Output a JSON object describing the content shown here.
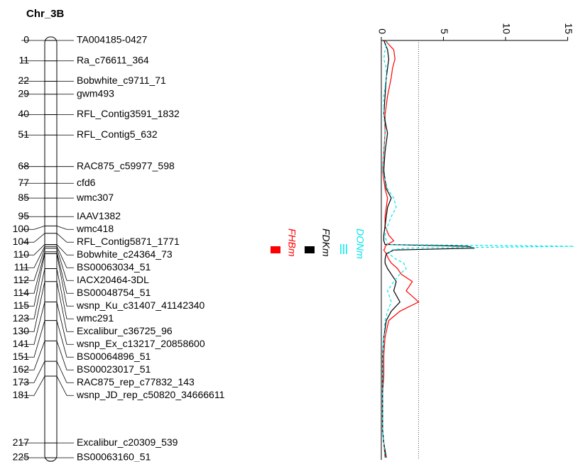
{
  "chart_data": {
    "type": "linkage_map",
    "title": "Chr_3B",
    "markers": {
      "positions": [
        0,
        11,
        22,
        29,
        40,
        51,
        68,
        77,
        85,
        95,
        100,
        104,
        110,
        111,
        112,
        114,
        115,
        123,
        130,
        141,
        151,
        162,
        173,
        181,
        217,
        225
      ],
      "names": [
        "TA004185-0427",
        "Ra_c76611_364",
        "Bobwhite_c9711_71",
        "gwm493",
        "RFL_Contig3591_1832",
        "RFL_Contig5_632",
        "RAC875_c59977_598",
        "cfd6",
        "wmc307",
        "IAAV1382",
        "wmc418",
        "RFL_Contig5871_1771",
        "Bobwhite_c24364_73",
        "BS00063034_51",
        "IACX20464-3DL",
        "BS00048754_51",
        "wsnp_Ku_c31407_41142340",
        "wmc291",
        "Excalibur_c36725_96",
        "wsnp_Ex_c13217_20858600",
        "BS00064896_51",
        "BS00023017_51",
        "RAC875_rep_c77832_143",
        "wsnp_JD_rep_c50820_34666611",
        "Excalibur_c20309_539",
        "BS00063160_51"
      ]
    },
    "positions": [
      0,
      5,
      10,
      15,
      20,
      30,
      40,
      50,
      60,
      70,
      80,
      85,
      90,
      95,
      100,
      105,
      108,
      110,
      111,
      112,
      113,
      115,
      118,
      120,
      123,
      126,
      130,
      135,
      141,
      146,
      151,
      160,
      170,
      181,
      190,
      200,
      210,
      217,
      225
    ],
    "ylim": [
      0,
      225
    ],
    "series": [
      {
        "name": "FHBm",
        "color": "#ff0000",
        "dash": false,
        "values": [
          0.3,
          1.0,
          1.1,
          0.9,
          0.8,
          0.5,
          0.3,
          0.3,
          0.2,
          0.1,
          0.3,
          0.5,
          0.4,
          0.3,
          0.3,
          0.6,
          1.0,
          0.5,
          0.3,
          0.3,
          0.2,
          0.4,
          0.6,
          0.8,
          1.3,
          1.6,
          2.5,
          2.0,
          3.0,
          1.5,
          0.6,
          0.3,
          0.2,
          0.2,
          0.1,
          0.1,
          0.1,
          0.2,
          0.3
        ]
      },
      {
        "name": "FDKm",
        "color": "#000000",
        "dash": false,
        "values": [
          0.2,
          0.5,
          0.6,
          0.5,
          0.4,
          0.3,
          0.2,
          0.5,
          0.3,
          0.2,
          0.4,
          0.8,
          0.5,
          0.4,
          0.3,
          0.2,
          0.2,
          0.3,
          7.0,
          7.5,
          1.0,
          0.4,
          0.3,
          0.3,
          0.5,
          0.8,
          1.2,
          1.0,
          1.5,
          0.8,
          0.4,
          0.2,
          0.1,
          0.1,
          0.1,
          0.1,
          0.1,
          0.2,
          0.4
        ]
      },
      {
        "name": "DONm",
        "color": "#00e5ee",
        "dash": true,
        "values": [
          0.5,
          0.3,
          0.2,
          0.4,
          0.4,
          0.2,
          0.2,
          0.3,
          0.2,
          0.1,
          0.5,
          1.0,
          1.2,
          0.8,
          0.5,
          0.3,
          0.4,
          0.5,
          15.5,
          2.0,
          0.8,
          0.6,
          1.2,
          1.8,
          2.0,
          1.5,
          1.0,
          0.5,
          0.8,
          0.5,
          0.3,
          0.2,
          0.1,
          0.1,
          0.1,
          0.1,
          0.1,
          0.2,
          0.3
        ]
      }
    ],
    "xlim": [
      0,
      15
    ],
    "xticks": [
      0,
      5,
      10,
      15
    ],
    "threshold": 3
  }
}
